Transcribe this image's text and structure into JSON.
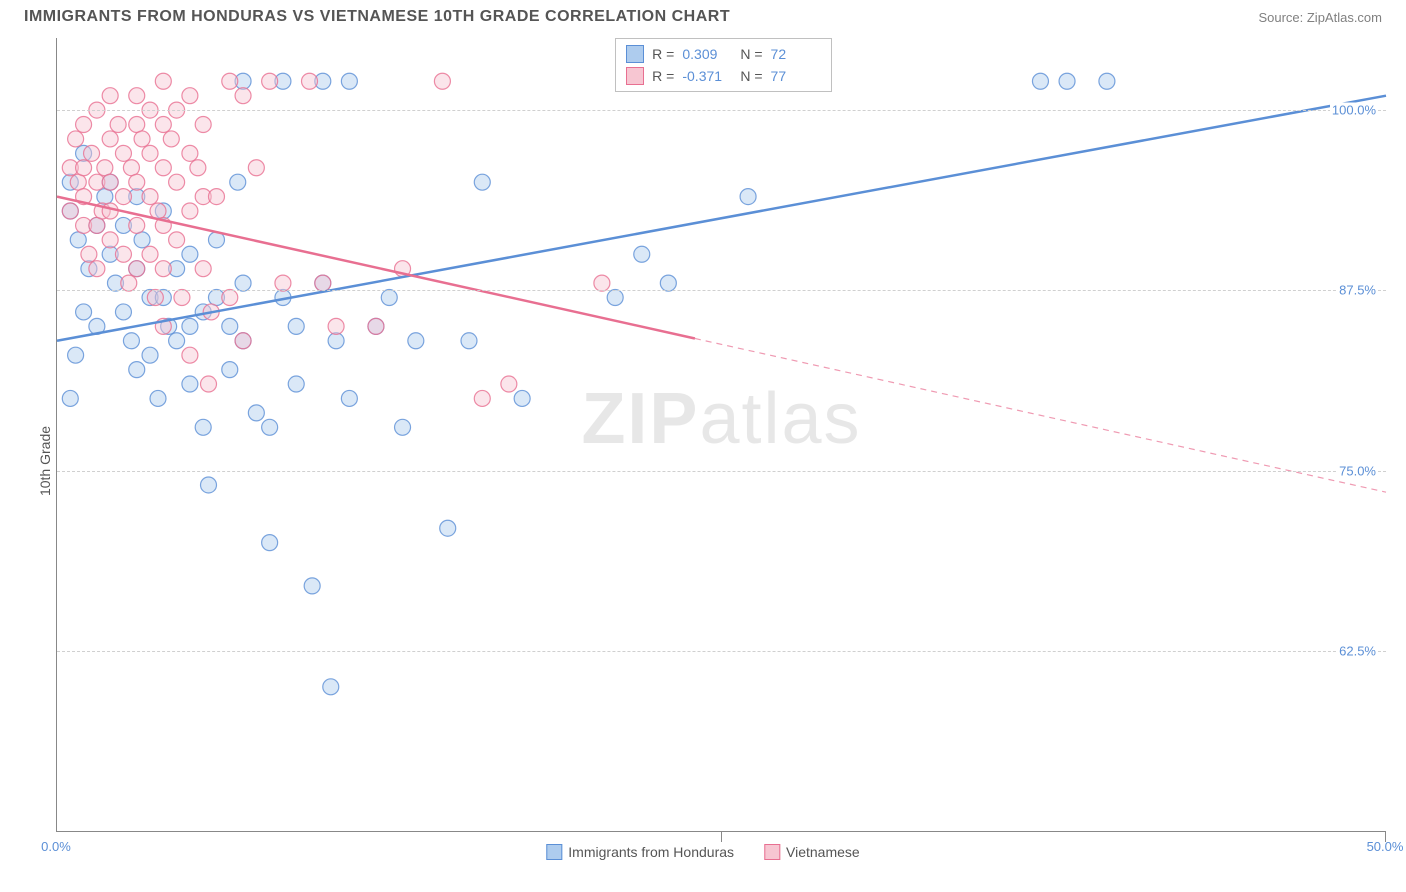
{
  "header": {
    "title": "IMMIGRANTS FROM HONDURAS VS VIETNAMESE 10TH GRADE CORRELATION CHART",
    "source_prefix": "Source: ",
    "source_name": "ZipAtlas.com"
  },
  "ylabel": "10th Grade",
  "watermark": {
    "bold": "ZIP",
    "light": "atlas"
  },
  "chart": {
    "type": "scatter",
    "xlim": [
      0,
      50
    ],
    "ylim": [
      50,
      105
    ],
    "y_ticks": [
      62.5,
      75.0,
      87.5,
      100.0
    ],
    "y_tick_labels": [
      "62.5%",
      "75.0%",
      "87.5%",
      "100.0%"
    ],
    "x_ticks": [
      0,
      50
    ],
    "x_tick_labels": [
      "0.0%",
      "50.0%"
    ],
    "x_mid_tick": 25,
    "grid_color": "#d0d0d0",
    "background_color": "#ffffff",
    "marker_radius": 8,
    "marker_opacity": 0.45,
    "line_width": 2.5
  },
  "series": {
    "honduras": {
      "label": "Immigrants from Honduras",
      "fill": "#aeccee",
      "stroke": "#5b8fd6",
      "R": "0.309",
      "N": "72",
      "regression": {
        "x1": 0,
        "y1": 84,
        "x2": 50,
        "y2": 101,
        "solid_until_x": 50
      },
      "points": [
        [
          0.5,
          93
        ],
        [
          0.5,
          95
        ],
        [
          1,
          97
        ],
        [
          0.8,
          91
        ],
        [
          1.2,
          89
        ],
        [
          1,
          86
        ],
        [
          1.5,
          92
        ],
        [
          1.5,
          85
        ],
        [
          0.7,
          83
        ],
        [
          0.5,
          80
        ],
        [
          1.8,
          94
        ],
        [
          2,
          95
        ],
        [
          2,
          90
        ],
        [
          2.2,
          88
        ],
        [
          2.5,
          92
        ],
        [
          2.5,
          86
        ],
        [
          2.8,
          84
        ],
        [
          3,
          94
        ],
        [
          3,
          89
        ],
        [
          3.2,
          91
        ],
        [
          3.5,
          87
        ],
        [
          3,
          82
        ],
        [
          3.5,
          83
        ],
        [
          3.8,
          80
        ],
        [
          4,
          93
        ],
        [
          4,
          87
        ],
        [
          4.2,
          85
        ],
        [
          4.5,
          84
        ],
        [
          4.5,
          89
        ],
        [
          5,
          90
        ],
        [
          5,
          85
        ],
        [
          5,
          81
        ],
        [
          5.5,
          78
        ],
        [
          5.5,
          86
        ],
        [
          5.7,
          74
        ],
        [
          6,
          91
        ],
        [
          6,
          87
        ],
        [
          6.5,
          85
        ],
        [
          6.5,
          82
        ],
        [
          6.8,
          95
        ],
        [
          7,
          102
        ],
        [
          7,
          88
        ],
        [
          7,
          84
        ],
        [
          7.5,
          79
        ],
        [
          8,
          78
        ],
        [
          8,
          70
        ],
        [
          8.5,
          102
        ],
        [
          8.5,
          87
        ],
        [
          9,
          85
        ],
        [
          9,
          81
        ],
        [
          9.6,
          67
        ],
        [
          10,
          102
        ],
        [
          10,
          88
        ],
        [
          10.3,
          60
        ],
        [
          10.5,
          84
        ],
        [
          11,
          102
        ],
        [
          11,
          80
        ],
        [
          12,
          85
        ],
        [
          12.5,
          87
        ],
        [
          13,
          78
        ],
        [
          13.5,
          84
        ],
        [
          14.7,
          71
        ],
        [
          15.5,
          84
        ],
        [
          16,
          95
        ],
        [
          17.5,
          80
        ],
        [
          21,
          87
        ],
        [
          22,
          90
        ],
        [
          23,
          88
        ],
        [
          26,
          94
        ],
        [
          37,
          102
        ],
        [
          38,
          102
        ],
        [
          39.5,
          102
        ]
      ]
    },
    "vietnamese": {
      "label": "Vietnamese",
      "fill": "#f7c6d2",
      "stroke": "#e86f91",
      "R": "-0.371",
      "N": "77",
      "regression": {
        "x1": 0,
        "y1": 94,
        "x2": 50,
        "y2": 73.5,
        "solid_until_x": 24
      },
      "points": [
        [
          0.5,
          96
        ],
        [
          0.5,
          93
        ],
        [
          0.7,
          98
        ],
        [
          0.8,
          95
        ],
        [
          1,
          99
        ],
        [
          1,
          96
        ],
        [
          1,
          94
        ],
        [
          1,
          92
        ],
        [
          1.2,
          90
        ],
        [
          1.3,
          97
        ],
        [
          1.5,
          100
        ],
        [
          1.5,
          95
        ],
        [
          1.5,
          92
        ],
        [
          1.5,
          89
        ],
        [
          1.7,
          93
        ],
        [
          1.8,
          96
        ],
        [
          2,
          101
        ],
        [
          2,
          98
        ],
        [
          2,
          95
        ],
        [
          2,
          93
        ],
        [
          2,
          91
        ],
        [
          2.3,
          99
        ],
        [
          2.5,
          97
        ],
        [
          2.5,
          94
        ],
        [
          2.5,
          90
        ],
        [
          2.7,
          88
        ],
        [
          2.8,
          96
        ],
        [
          3,
          101
        ],
        [
          3,
          99
        ],
        [
          3,
          95
        ],
        [
          3,
          92
        ],
        [
          3,
          89
        ],
        [
          3.2,
          98
        ],
        [
          3.5,
          100
        ],
        [
          3.5,
          97
        ],
        [
          3.5,
          94
        ],
        [
          3.5,
          90
        ],
        [
          3.7,
          87
        ],
        [
          3.8,
          93
        ],
        [
          4,
          99
        ],
        [
          4,
          102
        ],
        [
          4,
          96
        ],
        [
          4,
          92
        ],
        [
          4,
          89
        ],
        [
          4,
          85
        ],
        [
          4.3,
          98
        ],
        [
          4.5,
          100
        ],
        [
          4.5,
          95
        ],
        [
          4.5,
          91
        ],
        [
          4.7,
          87
        ],
        [
          5,
          101
        ],
        [
          5,
          97
        ],
        [
          5,
          93
        ],
        [
          5,
          83
        ],
        [
          5.3,
          96
        ],
        [
          5.5,
          99
        ],
        [
          5.5,
          94
        ],
        [
          5.5,
          89
        ],
        [
          5.7,
          81
        ],
        [
          5.8,
          86
        ],
        [
          6,
          94
        ],
        [
          6.5,
          102
        ],
        [
          6.5,
          87
        ],
        [
          7,
          101
        ],
        [
          7,
          84
        ],
        [
          7.5,
          96
        ],
        [
          8,
          102
        ],
        [
          8.5,
          88
        ],
        [
          9.5,
          102
        ],
        [
          10,
          88
        ],
        [
          10.5,
          85
        ],
        [
          12,
          85
        ],
        [
          13,
          89
        ],
        [
          14.5,
          102
        ],
        [
          16,
          80
        ],
        [
          17,
          81
        ],
        [
          20.5,
          88
        ]
      ]
    }
  },
  "stats_legend": {
    "rows": [
      {
        "series": "honduras",
        "R_label": "R =",
        "N_label": "N ="
      },
      {
        "series": "vietnamese",
        "R_label": "R =",
        "N_label": "N ="
      }
    ]
  },
  "bottom_legend": {
    "items": [
      {
        "series": "honduras"
      },
      {
        "series": "vietnamese"
      }
    ]
  }
}
